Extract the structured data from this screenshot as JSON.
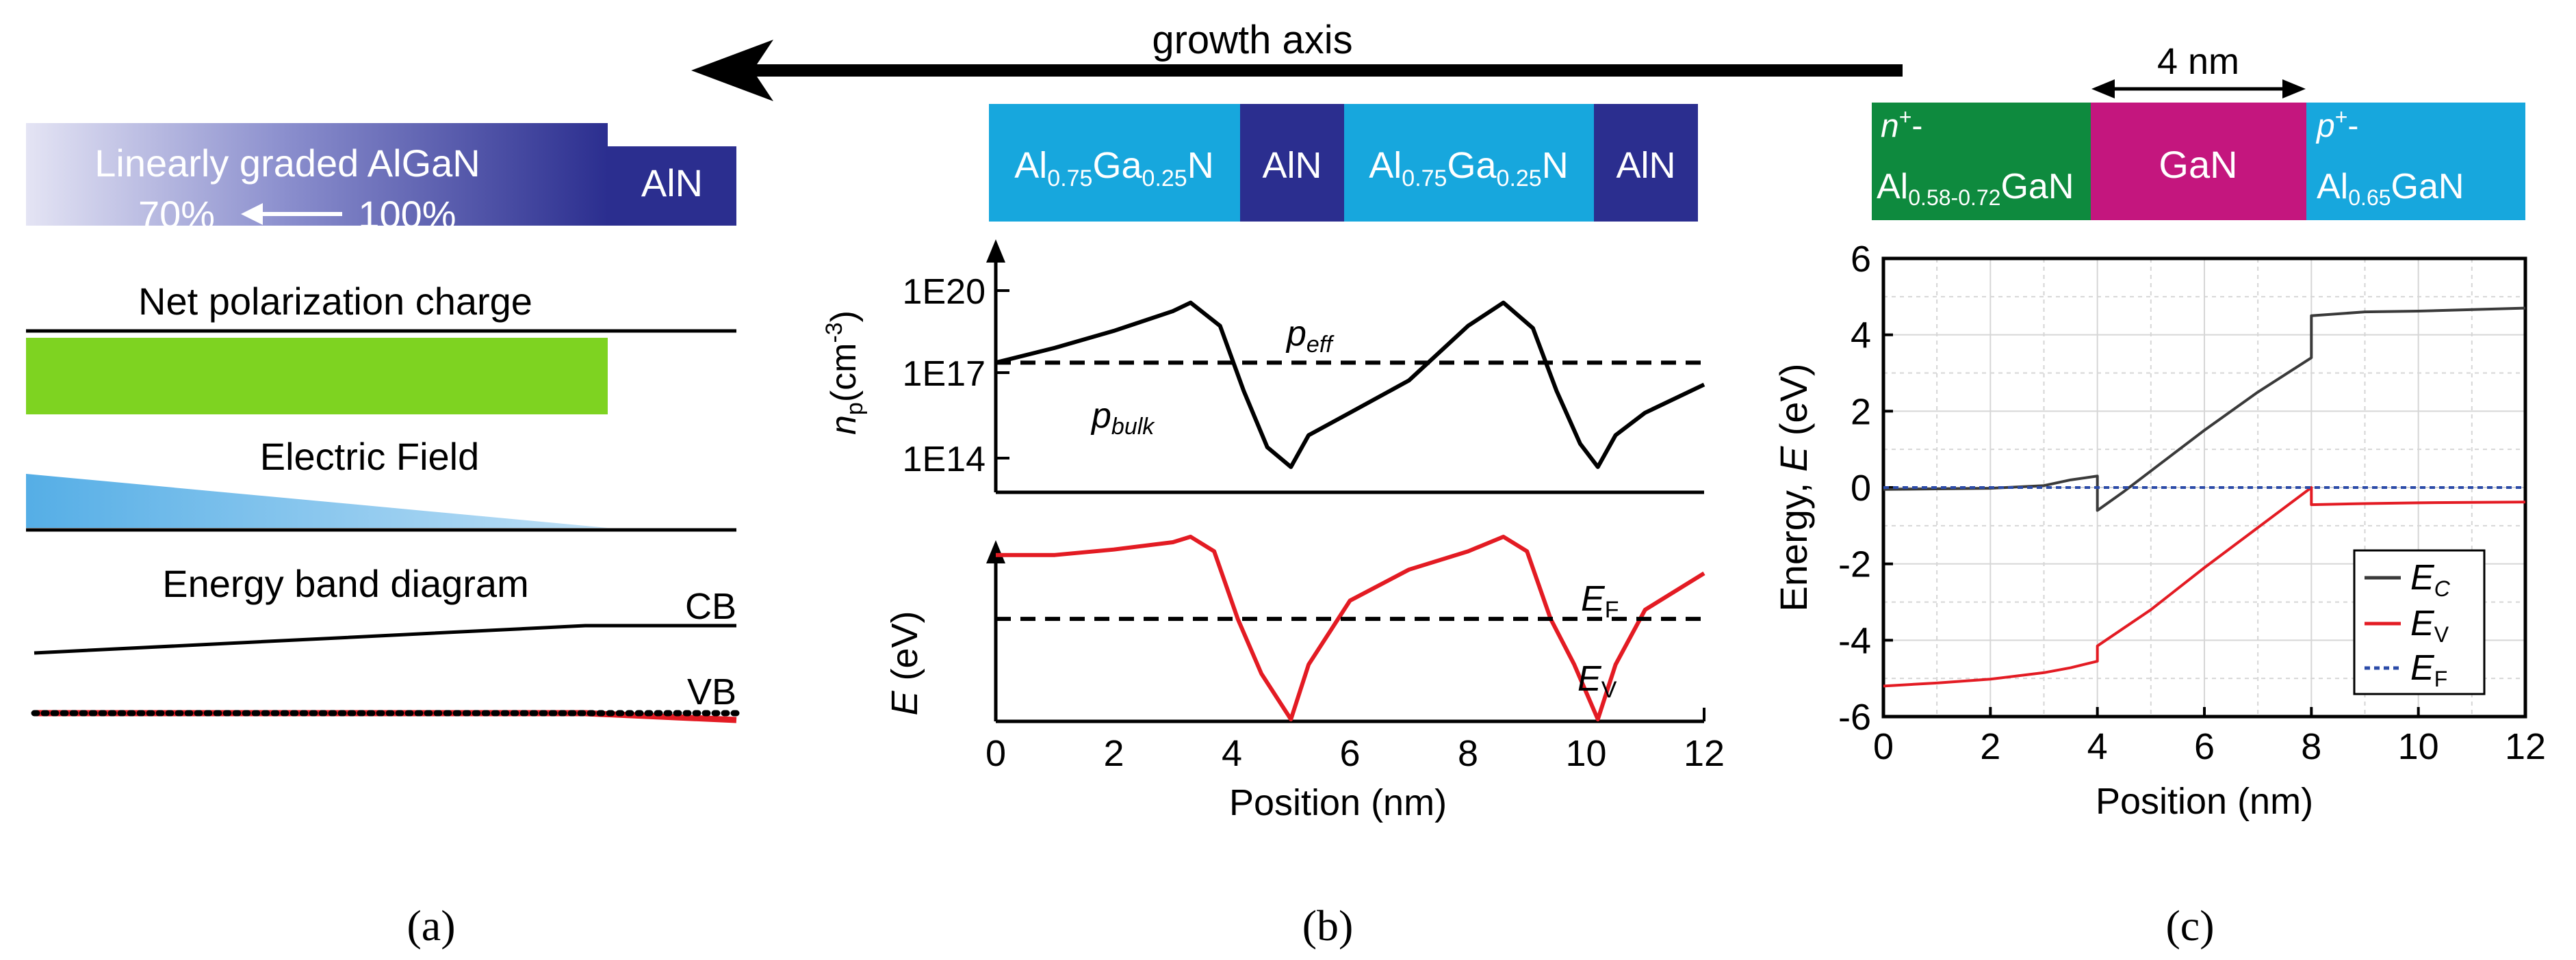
{
  "growth_axis": {
    "label": "growth axis"
  },
  "colors": {
    "aln_dark": "#2b2e8f",
    "algan_light": "#17a7dd",
    "n_algan_green": "#0e8a3e",
    "gan_magenta": "#c4167e",
    "pol_green": "#7ed321",
    "field_blue": "#55aee6",
    "ev_red": "#e31b23"
  },
  "panel_a": {
    "graded_label": "Linearly graded AlGaN",
    "pct_start": "70%",
    "pct_end": "100%",
    "aln_label": "AlN",
    "net_pol_label": "Net polarization charge",
    "field_label": "Electric Field",
    "band_label": "Energy band diagram",
    "cb_label": "CB",
    "vb_label": "VB",
    "caption": "(a)"
  },
  "panel_b": {
    "layers": [
      {
        "al": "Al",
        "al_sub": "0.75",
        "ga": "Ga",
        "ga_sub": "0.25",
        "n": "N"
      },
      {
        "text": "AlN"
      },
      {
        "al": "Al",
        "al_sub": "0.75",
        "ga": "Ga",
        "ga_sub": "0.25",
        "n": "N"
      },
      {
        "text": "AlN"
      }
    ],
    "top_ylabel_main": "n",
    "top_ylabel_sub": "p",
    "top_ylabel_unit": "(cm",
    "top_ylabel_exp": "-3",
    "top_ylabel_close": ")",
    "top_ticks": [
      "1E20",
      "1E17",
      "1E14"
    ],
    "p_eff_main": "p",
    "p_eff_sub": "eff",
    "p_bulk_main": "p",
    "p_bulk_sub": "bulk",
    "bottom_ylabel_main": "E",
    "bottom_ylabel_unit": " (eV)",
    "ef_main": "E",
    "ef_sub": "F",
    "ev_main": "E",
    "ev_sub": "V",
    "xticks": [
      "0",
      "2",
      "4",
      "6",
      "8",
      "10",
      "12"
    ],
    "xlabel": "Position (nm)",
    "caption": "(b)"
  },
  "panel_c": {
    "span_label": "4 nm",
    "n_layer_line1": "n",
    "n_layer_sup": "+",
    "n_layer_dash": "-",
    "n_layer_al": "Al",
    "n_layer_sub": "0.58-0.72",
    "n_layer_rest": "GaN",
    "gan_label": "GaN",
    "p_layer_line1": "p",
    "p_layer_sup": "+",
    "p_layer_dash": "-",
    "p_layer_al": "Al",
    "p_layer_sub": "0.65",
    "p_layer_rest": "GaN",
    "ylabel_main": "Energy, ",
    "ylabel_var": "E",
    "ylabel_unit": " (eV)",
    "yticks": [
      "6",
      "4",
      "2",
      "0",
      "-2",
      "-4",
      "-6"
    ],
    "xticks": [
      "0",
      "2",
      "4",
      "6",
      "8",
      "10",
      "12"
    ],
    "xlabel": "Position (nm)",
    "legend": [
      {
        "main": "E",
        "sub": "C"
      },
      {
        "main": "E",
        "sub": "V"
      },
      {
        "main": "E",
        "sub": "F"
      }
    ],
    "caption": "(c)"
  },
  "chart_data": [
    {
      "type": "line",
      "title": "",
      "xlabel": "Position (nm)",
      "ylabel": "n_p (cm^-3)",
      "yscale": "log",
      "xlim": [
        0,
        12
      ],
      "ylim": [
        10000000000000.0,
        1e+21
      ],
      "series": [
        {
          "name": "n_p",
          "x": [
            0,
            1,
            2,
            3,
            3.3,
            3.8,
            4.2,
            4.6,
            5.0,
            5.3,
            6,
            7,
            8,
            8.6,
            9.1,
            9.5,
            9.9,
            10.2,
            10.5,
            11,
            12
          ],
          "values": [
            3e+17,
            1e+18,
            4e+18,
            2e+19,
            4e+19,
            6e+18,
            3e+16,
            300000000000000.0,
            60000000000000.0,
            800000000000000.0,
            5000000000000000.0,
            7e+16,
            6e+18,
            4e+19,
            5e+18,
            3e+16,
            400000000000000.0,
            60000000000000.0,
            800000000000000.0,
            5000000000000000.0,
            5e+16
          ]
        },
        {
          "name": "p_eff",
          "x": [
            0,
            12
          ],
          "values": [
            3e+17,
            3e+17
          ]
        }
      ]
    },
    {
      "type": "line",
      "title": "",
      "xlabel": "Position (nm)",
      "ylabel": "E (eV)",
      "xlim": [
        0,
        12
      ],
      "ylim": [
        0,
        1
      ],
      "series": [
        {
          "name": "E_V",
          "x": [
            0,
            1,
            2,
            3,
            3.3,
            3.7,
            4.1,
            4.5,
            5.0,
            5.3,
            6,
            7,
            8,
            8.6,
            9.0,
            9.4,
            9.8,
            10.2,
            10.5,
            11,
            12
          ],
          "values": [
            0.9,
            0.9,
            0.93,
            0.97,
            1.0,
            0.92,
            0.55,
            0.25,
            0.0,
            0.3,
            0.65,
            0.82,
            0.92,
            1.0,
            0.92,
            0.55,
            0.3,
            0.0,
            0.3,
            0.6,
            0.8
          ]
        },
        {
          "name": "E_F",
          "x": [
            0,
            12
          ],
          "values": [
            0.55,
            0.55
          ]
        }
      ]
    },
    {
      "type": "line",
      "title": "",
      "xlabel": "Position (nm)",
      "ylabel": "Energy, E (eV)",
      "xlim": [
        0,
        12
      ],
      "ylim": [
        -6,
        6
      ],
      "series": [
        {
          "name": "E_C",
          "x": [
            0,
            2,
            3,
            3.5,
            4,
            4.0,
            4.5,
            6,
            7,
            8,
            8.0,
            9,
            10,
            12
          ],
          "values": [
            -0.05,
            -0.02,
            0.05,
            0.2,
            0.3,
            -0.6,
            -0.1,
            1.5,
            2.5,
            3.4,
            4.5,
            4.6,
            4.62,
            4.7
          ]
        },
        {
          "name": "E_V",
          "x": [
            0,
            1,
            2,
            3,
            3.5,
            4,
            4.0,
            5,
            6,
            7,
            8,
            8.0,
            9,
            10,
            12
          ],
          "values": [
            -5.2,
            -5.12,
            -5.02,
            -4.85,
            -4.72,
            -4.55,
            -4.15,
            -3.2,
            -2.1,
            -1.05,
            0.0,
            -0.45,
            -0.42,
            -0.4,
            -0.38
          ]
        },
        {
          "name": "E_F",
          "x": [
            0,
            12
          ],
          "values": [
            0,
            0
          ]
        }
      ]
    }
  ]
}
